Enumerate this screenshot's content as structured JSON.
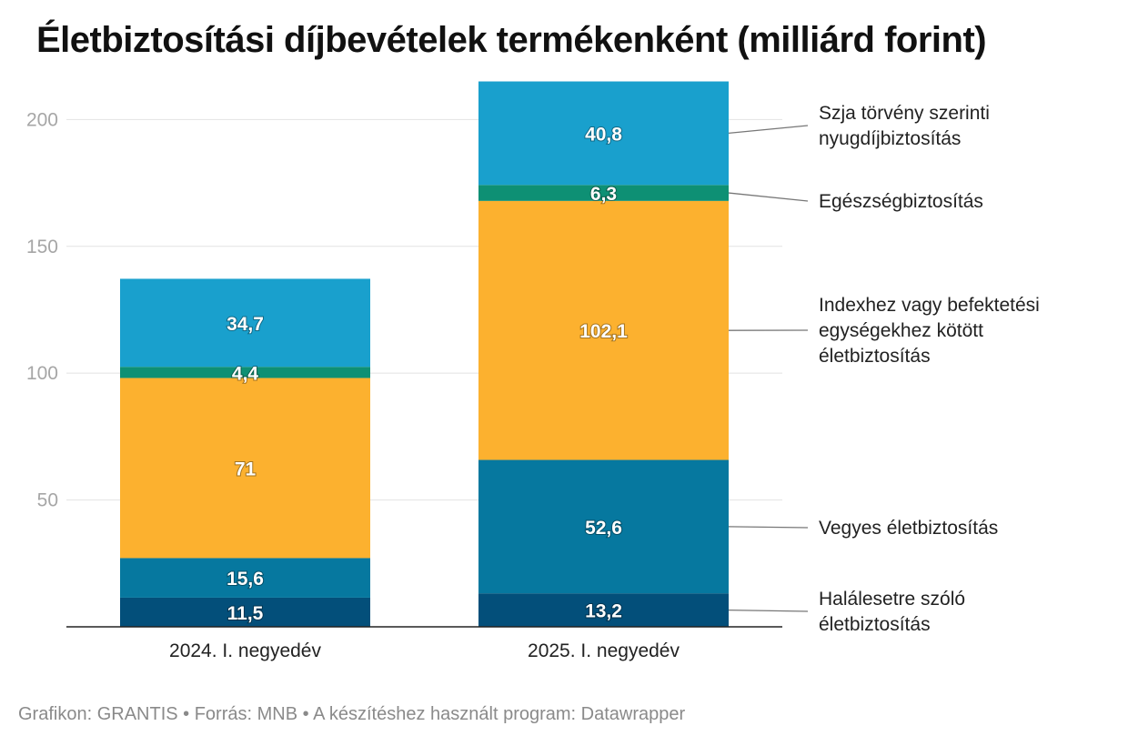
{
  "title": "Életbiztosítási díjbevételek termékenként (milliárd forint)",
  "footer": "Grafikon: GRANTIS • Forrás: MNB • A készítéshez használt program: Datawrapper",
  "chart_data": {
    "type": "bar",
    "stacked": true,
    "categories": [
      "2024. I. negyedév",
      "2025. I. negyedév"
    ],
    "series": [
      {
        "name": "Halálesetre szóló életbiztosítás",
        "legend_lines": [
          "Halálesetre szóló",
          "életbiztosítás"
        ],
        "color": "#034f7a",
        "values": [
          11.5,
          13.2
        ],
        "labels": [
          "11,5",
          "13,2"
        ]
      },
      {
        "name": "Vegyes életbiztosítás",
        "legend_lines": [
          "Vegyes életbiztosítás"
        ],
        "color": "#06789f",
        "values": [
          15.6,
          52.6
        ],
        "labels": [
          "15,6",
          "52,6"
        ]
      },
      {
        "name": "Indexhez vagy befektetési egységekhez kötött életbiztosítás",
        "legend_lines": [
          "Indexhez vagy befektetési",
          "egységekhez kötött",
          "életbiztosítás"
        ],
        "color": "#fcb12f",
        "values": [
          71,
          102.1
        ],
        "labels": [
          "71",
          "102,1"
        ]
      },
      {
        "name": "Egészségbiztosítás",
        "legend_lines": [
          "Egészségbiztosítás"
        ],
        "color": "#0e9074",
        "values": [
          4.4,
          6.3
        ],
        "labels": [
          "4,4",
          "6,3"
        ]
      },
      {
        "name": "Szja törvény szerinti nyugdíjbiztosítás",
        "legend_lines": [
          "Szja törvény szerinti",
          "nyugdíjbiztosítás"
        ],
        "color": "#19a0cd",
        "values": [
          34.7,
          40.8
        ],
        "labels": [
          "34,7",
          "40,8"
        ]
      }
    ],
    "yticks": [
      50,
      100,
      150,
      200
    ],
    "ylim": [
      0,
      215
    ],
    "legend": "right, connected to the 2025 bar segments",
    "xlabel": "",
    "ylabel": ""
  }
}
